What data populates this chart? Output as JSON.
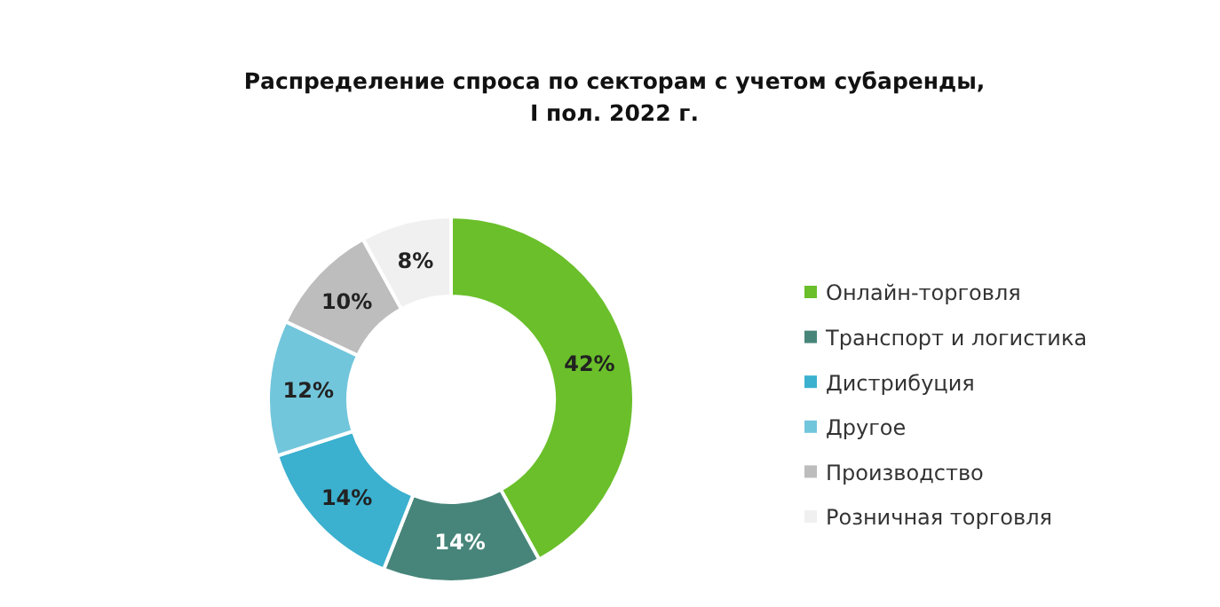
{
  "chart_data": {
    "type": "donut",
    "title": "Распределение спроса по секторам с учетом субаренды,\nI пол. 2022 г.",
    "categories": [
      "Онлайн-торговля",
      "Транспорт и логистика",
      "Дистрибуция",
      "Другое",
      "Производство",
      "Розничная торговля"
    ],
    "values": [
      42,
      14,
      14,
      12,
      10,
      8
    ],
    "colors": [
      "#6abf2a",
      "#47857a",
      "#3bb0cf",
      "#72c6dc",
      "#bdbdbd",
      "#f0f0f0"
    ],
    "value_labels": [
      "42%",
      "14%",
      "14%",
      "12%",
      "10%",
      "8%"
    ],
    "legend": "right"
  }
}
